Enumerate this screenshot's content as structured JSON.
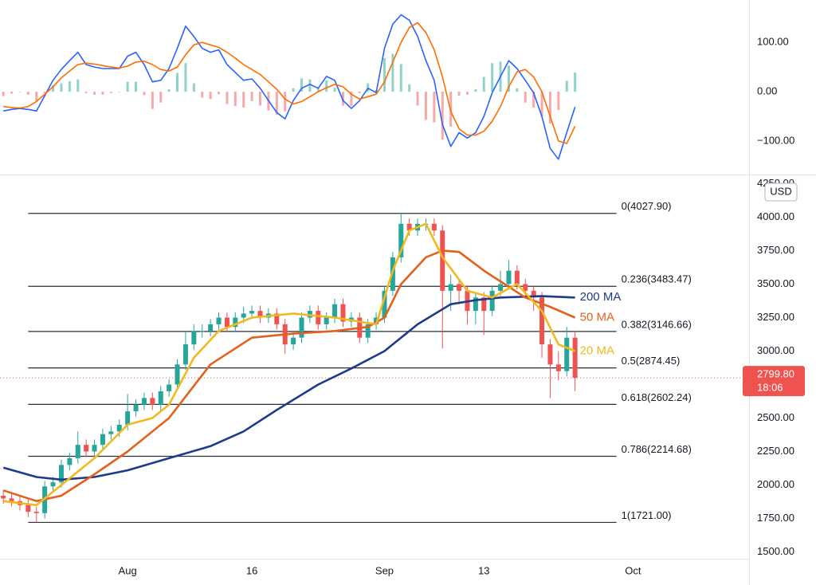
{
  "chart_data": [
    {
      "type": "line",
      "xlim": [
        -15.4,
        75
      ],
      "ylim": [
        -168,
        186
      ],
      "yticks": [
        {
          "value": 100,
          "label": "100.00"
        },
        {
          "value": 0,
          "label": "0.00"
        },
        {
          "value": -100,
          "label": "−100.00"
        }
      ],
      "x": [
        -15,
        -14,
        -13,
        -12,
        -11,
        -10,
        -9,
        -8,
        -7,
        -6,
        -5,
        -4,
        -3,
        -2,
        -1,
        0,
        1,
        2,
        3,
        4,
        5,
        6,
        7,
        8,
        9,
        10,
        11,
        12,
        13,
        14,
        15,
        16,
        17,
        18,
        19,
        20,
        21,
        22,
        23,
        24,
        25,
        26,
        27,
        28,
        29,
        30,
        31,
        32,
        33,
        34,
        35,
        36,
        37,
        38,
        39,
        40,
        41,
        42,
        43,
        44,
        45,
        46,
        47,
        48,
        49,
        50,
        51,
        52,
        53,
        54
      ],
      "histogram": {
        "up_color": "#8fd3c8",
        "down_color": "#f7a9a8",
        "values": [
          -9,
          -4,
          -1,
          -6,
          -19,
          -3,
          13,
          17,
          21,
          25,
          -3,
          -6,
          -6,
          -3,
          -1,
          20,
          20,
          -7,
          -35,
          -22,
          5,
          38,
          58,
          17,
          -12,
          -15,
          -5,
          -25,
          -29,
          -32,
          -19,
          -28,
          -38,
          -47,
          -40,
          7,
          27,
          25,
          7,
          23,
          8,
          -28,
          -29,
          -3,
          17,
          3,
          68,
          77,
          56,
          15,
          -28,
          -57,
          -62,
          -97,
          -71,
          -8,
          -6,
          5,
          30,
          58,
          61,
          53,
          7,
          -22,
          -32,
          -50,
          -65,
          -37,
          22,
          39
        ]
      },
      "series": [
        {
          "color": "#2962ff",
          "values": [
            -39,
            -36,
            -34,
            -36,
            -39,
            -8,
            23,
            45,
            63,
            80,
            55,
            50,
            47,
            47,
            47,
            72,
            80,
            55,
            20,
            23,
            47,
            88,
            133,
            112,
            88,
            80,
            85,
            55,
            39,
            23,
            26,
            7,
            -18,
            -42,
            -55,
            -18,
            7,
            15,
            7,
            31,
            23,
            -18,
            -34,
            -18,
            7,
            -2,
            88,
            137,
            156,
            145,
            112,
            63,
            23,
            -67,
            -111,
            -83,
            -94,
            -83,
            -50,
            -2,
            31,
            63,
            47,
            23,
            -2,
            -50,
            -115,
            -137,
            -83,
            -31
          ]
        },
        {
          "color": "#ff6d00",
          "values": [
            -30,
            -32,
            -33,
            -30,
            -20,
            -5,
            10,
            28,
            42,
            55,
            58,
            56,
            53,
            50,
            48,
            52,
            60,
            62,
            55,
            45,
            42,
            50,
            75,
            95,
            100,
            95,
            90,
            80,
            68,
            55,
            45,
            35,
            20,
            5,
            -15,
            -25,
            -20,
            -10,
            0,
            8,
            15,
            10,
            -5,
            -15,
            -10,
            -5,
            20,
            60,
            100,
            130,
            140,
            120,
            85,
            30,
            -40,
            -75,
            -88,
            -88,
            -80,
            -60,
            -30,
            10,
            40,
            45,
            30,
            0,
            -50,
            -100,
            -105,
            -70
          ]
        }
      ]
    },
    {
      "type": "candlestick",
      "currency": "USD",
      "xlim": [
        -15.4,
        75
      ],
      "xticks": [
        {
          "value": 0,
          "label": "Aug"
        },
        {
          "value": 15,
          "label": "16"
        },
        {
          "value": 31,
          "label": "Sep"
        },
        {
          "value": 43,
          "label": "13"
        },
        {
          "value": 61,
          "label": "Oct"
        }
      ],
      "ylim": [
        1450,
        4300
      ],
      "yticks": [
        {
          "value": 1500,
          "label": "1500.00"
        },
        {
          "value": 1750,
          "label": "1750.00"
        },
        {
          "value": 2000,
          "label": "2000.00"
        },
        {
          "value": 2250,
          "label": "2250.00"
        },
        {
          "value": 2500,
          "label": "2500.00"
        },
        {
          "value": 2750,
          "label": "2750.00"
        },
        {
          "value": 3000,
          "label": "3000.00"
        },
        {
          "value": 3250,
          "label": "3250.00"
        },
        {
          "value": 3500,
          "label": "3500.00"
        },
        {
          "value": 3750,
          "label": "3750.00"
        },
        {
          "value": 4000,
          "label": "4000.00"
        },
        {
          "value": 4250,
          "label": "4250.00"
        }
      ],
      "up_color": "#26a69a",
      "down_color": "#ef5350",
      "x": [
        -15,
        -14,
        -13,
        -12,
        -11,
        -10,
        -9,
        -8,
        -7,
        -6,
        -5,
        -4,
        -3,
        -2,
        -1,
        0,
        1,
        2,
        3,
        4,
        5,
        6,
        7,
        8,
        9,
        10,
        11,
        12,
        13,
        14,
        15,
        16,
        17,
        18,
        19,
        20,
        21,
        22,
        23,
        24,
        25,
        26,
        27,
        28,
        29,
        30,
        31,
        32,
        33,
        34,
        35,
        36,
        37,
        38,
        39,
        40,
        41,
        42,
        43,
        44,
        45,
        46,
        47,
        48,
        49,
        50,
        51,
        52,
        53,
        54
      ],
      "open": [
        1920,
        1900,
        1880,
        1850,
        1800,
        1790,
        1990,
        2020,
        2150,
        2200,
        2300,
        2250,
        2300,
        2380,
        2400,
        2450,
        2550,
        2600,
        2650,
        2600,
        2700,
        2750,
        2900,
        3050,
        3150,
        3150,
        3200,
        3250,
        3180,
        3250,
        3280,
        3300,
        3250,
        3280,
        3200,
        3050,
        3100,
        3250,
        3300,
        3200,
        3250,
        3350,
        3220,
        3250,
        3100,
        3200,
        3250,
        3450,
        3700,
        3950,
        3900,
        3950,
        3950,
        3900,
        3450,
        3500,
        3450,
        3300,
        3400,
        3300,
        3450,
        3500,
        3600,
        3500,
        3450,
        3400,
        3050,
        2900,
        2850,
        3100
      ],
      "high": [
        1960,
        1940,
        1920,
        1890,
        1840,
        2030,
        2060,
        2190,
        2240,
        2400,
        2340,
        2340,
        2420,
        2440,
        2490,
        2680,
        2640,
        2690,
        2690,
        2740,
        2790,
        2940,
        3150,
        3200,
        3200,
        3240,
        3290,
        3290,
        3290,
        3330,
        3340,
        3340,
        3320,
        3320,
        3240,
        3140,
        3290,
        3340,
        3340,
        3290,
        3390,
        3390,
        3290,
        3290,
        3240,
        3290,
        3490,
        3740,
        4028,
        3990,
        3990,
        3990,
        3990,
        3940,
        3570,
        3540,
        3490,
        3440,
        3440,
        3490,
        3600,
        3680,
        3640,
        3540,
        3490,
        3440,
        3090,
        3000,
        3180,
        3150
      ],
      "low": [
        1860,
        1840,
        1810,
        1760,
        1721,
        1750,
        1950,
        1980,
        2110,
        2160,
        2210,
        2210,
        2260,
        2340,
        2360,
        2410,
        2510,
        2560,
        2560,
        2560,
        2660,
        2710,
        2860,
        3010,
        3100,
        3110,
        3160,
        3140,
        3140,
        3210,
        3240,
        3210,
        3210,
        3160,
        2980,
        3010,
        3060,
        3210,
        3160,
        3160,
        3210,
        3180,
        3180,
        3060,
        3060,
        3160,
        3210,
        3410,
        3660,
        3860,
        3860,
        3900,
        3860,
        3020,
        3300,
        3350,
        3200,
        3200,
        3120,
        3260,
        3410,
        3460,
        3460,
        3410,
        3300,
        2950,
        2650,
        2780,
        2810,
        2700
      ],
      "close": [
        1900,
        1880,
        1850,
        1800,
        1790,
        1990,
        2020,
        2150,
        2200,
        2300,
        2250,
        2300,
        2380,
        2400,
        2450,
        2550,
        2600,
        2650,
        2600,
        2700,
        2750,
        2900,
        3050,
        3150,
        3150,
        3200,
        3250,
        3180,
        3250,
        3280,
        3300,
        3250,
        3280,
        3200,
        3050,
        3100,
        3250,
        3300,
        3200,
        3250,
        3350,
        3220,
        3250,
        3100,
        3200,
        3250,
        3450,
        3700,
        3950,
        3900,
        3950,
        3950,
        3900,
        3450,
        3500,
        3450,
        3300,
        3400,
        3300,
        3450,
        3500,
        3600,
        3500,
        3450,
        3400,
        3050,
        2900,
        2850,
        3100,
        2800
      ],
      "series": [
        {
          "name": "200 MA",
          "color": "#1e3a8a",
          "x": [
            -15,
            -11,
            -8,
            -4,
            0,
            5,
            10,
            14,
            18,
            23,
            27,
            31,
            35,
            39,
            42,
            45,
            50,
            54
          ],
          "values": [
            2130,
            2060,
            2040,
            2060,
            2110,
            2200,
            2290,
            2400,
            2560,
            2750,
            2870,
            3000,
            3200,
            3350,
            3380,
            3400,
            3410,
            3400
          ]
        },
        {
          "name": "50 MA",
          "color": "#e2611c",
          "x": [
            -15,
            -11,
            -8,
            -4,
            0,
            5,
            10,
            15,
            20,
            25,
            29,
            31,
            33,
            36,
            38,
            40,
            43,
            46,
            48,
            51,
            54
          ],
          "values": [
            1960,
            1880,
            1920,
            2080,
            2250,
            2500,
            2900,
            3100,
            3130,
            3150,
            3180,
            3250,
            3500,
            3700,
            3750,
            3740,
            3600,
            3480,
            3400,
            3330,
            3250
          ]
        },
        {
          "name": "20 MA",
          "color": "#f2b81f",
          "x": [
            -15,
            -11,
            -8,
            -4,
            0,
            3,
            5,
            8,
            11,
            15,
            20,
            25,
            30,
            32,
            34,
            36,
            38,
            41,
            44,
            47,
            50,
            52,
            54
          ],
          "values": [
            1880,
            1850,
            2000,
            2200,
            2450,
            2500,
            2600,
            2950,
            3150,
            3250,
            3280,
            3250,
            3200,
            3600,
            3900,
            3950,
            3700,
            3450,
            3400,
            3500,
            3300,
            3050,
            3000
          ]
        }
      ],
      "fib_levels": [
        {
          "value": 4027.9,
          "label": "0(4027.90)"
        },
        {
          "value": 3483.47,
          "label": "0.236(3483.47)"
        },
        {
          "value": 3146.66,
          "label": "0.382(3146.66)"
        },
        {
          "value": 2874.45,
          "label": "0.5(2874.45)"
        },
        {
          "value": 2602.24,
          "label": "0.618(2602.24)"
        },
        {
          "value": 2214.68,
          "label": "0.786(2214.68)"
        },
        {
          "value": 1721.0,
          "label": "1(1721.00)"
        }
      ],
      "last_price": {
        "value": 2799.8,
        "label": "2799.80",
        "countdown": "18:06",
        "color": "#ef5350"
      }
    }
  ]
}
